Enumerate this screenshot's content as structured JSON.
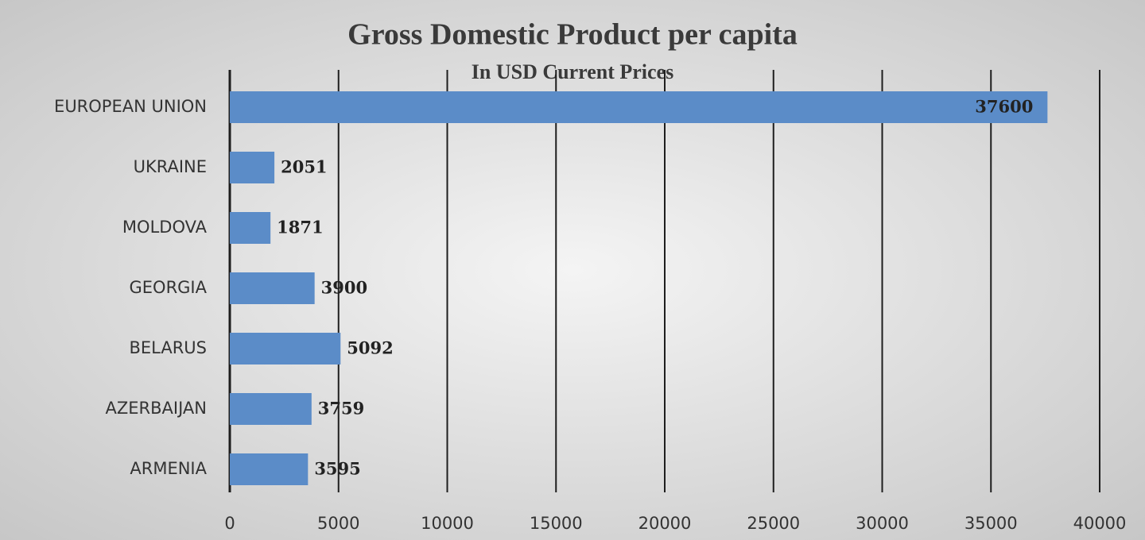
{
  "chart_data": {
    "type": "barh",
    "title": "Gross Domestic Product per capita",
    "subtitle": "In USD Current Prices",
    "categories": [
      "EUROPEAN UNION",
      "UKRAINE",
      "MOLDOVA",
      "GEORGIA",
      "BELARUS",
      "AZERBAIJAN",
      "ARMENIA"
    ],
    "values": [
      37600,
      2051,
      1871,
      3900,
      5092,
      3759,
      3595
    ],
    "color": "#5b8cc8",
    "xlim": [
      0,
      40000
    ],
    "xticks": [
      0,
      5000,
      10000,
      15000,
      20000,
      25000,
      30000,
      35000,
      40000
    ],
    "grid": true
  }
}
